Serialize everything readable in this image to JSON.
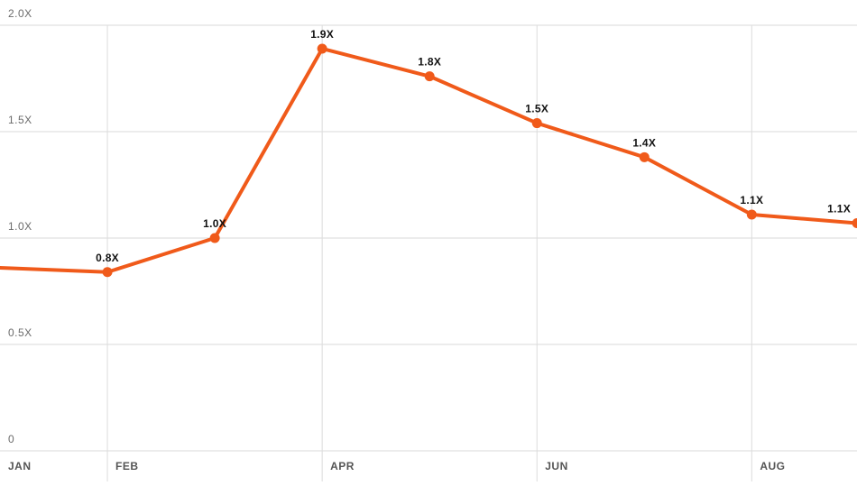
{
  "chart_data": {
    "type": "line",
    "title": "",
    "xlabel": "",
    "ylabel": "",
    "ylim": [
      0,
      2.0
    ],
    "y_ticks": [
      {
        "value": 0,
        "label": "0"
      },
      {
        "value": 0.5,
        "label": "0.5X"
      },
      {
        "value": 1.0,
        "label": "1.0X"
      },
      {
        "value": 1.5,
        "label": "1.5X"
      },
      {
        "value": 2.0,
        "label": "2.0X"
      }
    ],
    "x_ticks": [
      {
        "value": 1,
        "label": "JAN"
      },
      {
        "value": 2,
        "label": "FEB"
      },
      {
        "value": 4,
        "label": "APR"
      },
      {
        "value": 6,
        "label": "JUN"
      },
      {
        "value": 8,
        "label": "AUG"
      }
    ],
    "x_gridlines": [
      2,
      4,
      6,
      8
    ],
    "xlim": [
      1,
      8.98
    ],
    "grid": true,
    "legend": "none",
    "series_color": "#f05a1a",
    "series": [
      {
        "values": [
          {
            "x": 1,
            "y": 0.86,
            "label": ""
          },
          {
            "x": 2,
            "y": 0.84,
            "label": "0.8X"
          },
          {
            "x": 3,
            "y": 1.0,
            "label": "1.0X"
          },
          {
            "x": 4,
            "y": 1.89,
            "label": "1.9X"
          },
          {
            "x": 5,
            "y": 1.76,
            "label": "1.8X"
          },
          {
            "x": 6,
            "y": 1.54,
            "label": "1.5X"
          },
          {
            "x": 7,
            "y": 1.38,
            "label": "1.4X"
          },
          {
            "x": 8,
            "y": 1.11,
            "label": "1.1X"
          },
          {
            "x": 8.98,
            "y": 1.07,
            "label": "1.1X"
          }
        ]
      }
    ]
  }
}
